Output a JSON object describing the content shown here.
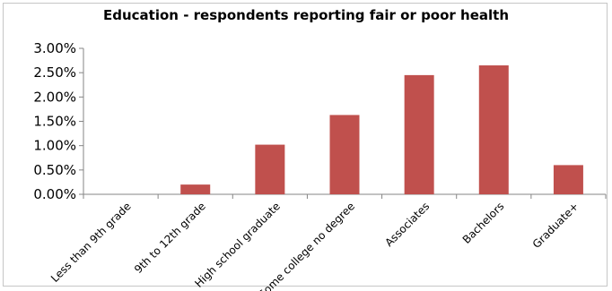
{
  "chart_data": {
    "type": "bar",
    "title": "Education - respondents reporting fair or poor health",
    "categories": [
      "Less than 9th grade",
      "9th to 12th grade",
      "High school graduate",
      "Some college no degree",
      "Associates",
      "Bachelors",
      "Graduate+"
    ],
    "values": [
      0.0,
      0.2,
      1.02,
      1.63,
      2.45,
      2.65,
      0.6
    ],
    "value_unit": "%",
    "ylim": [
      0,
      3.0
    ],
    "y_ticks": [
      "0.00%",
      "0.50%",
      "1.00%",
      "1.50%",
      "2.00%",
      "2.50%",
      "3.00%"
    ],
    "xlabel": "",
    "ylabel": "",
    "grid": false,
    "legend": "none",
    "bar_color": "#c0504d"
  }
}
